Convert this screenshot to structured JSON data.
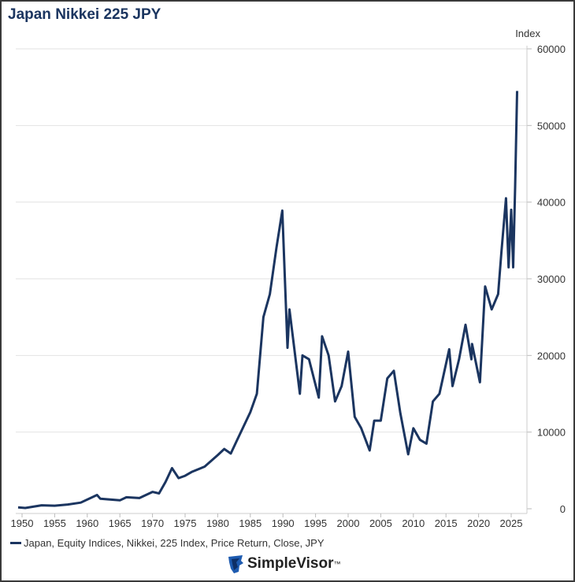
{
  "chart_data": {
    "type": "line",
    "title": "Japan Nikkei 225 JPY",
    "ylabel": "Index",
    "ylim": [
      0,
      60000
    ],
    "yticks": [
      0,
      10000,
      20000,
      30000,
      40000,
      50000,
      60000
    ],
    "xticks": [
      1950,
      1955,
      1960,
      1965,
      1970,
      1975,
      1980,
      1985,
      1990,
      1995,
      2000,
      2005,
      2010,
      2015,
      2020,
      2025
    ],
    "grid": true,
    "legend_placement": "bottom-left",
    "color": "#1b3560",
    "series": [
      {
        "name": "Japan, Equity Indices, Nikkei, 225 Index, Price Return, Close, JPY",
        "x": [
          1949.4,
          1950.5,
          1953,
          1955,
          1957,
          1959,
          1961.5,
          1962,
          1965,
          1966,
          1968,
          1970,
          1971,
          1972,
          1973,
          1974,
          1975,
          1976,
          1978,
          1980,
          1981,
          1982,
          1983,
          1984,
          1985,
          1986,
          1987,
          1988,
          1989,
          1989.9,
          1990.7,
          1991,
          1992.6,
          1993,
          1994,
          1995.5,
          1996,
          1997,
          1998,
          1999,
          2000,
          2001,
          2002,
          2003.3,
          2004,
          2005,
          2006,
          2007,
          2008,
          2009.2,
          2010,
          2011,
          2012,
          2013,
          2014,
          2015.5,
          2016,
          2017,
          2018,
          2018.9,
          2019,
          2020.2,
          2021,
          2022,
          2023,
          2023.5,
          2024.2,
          2024.6,
          2025,
          2025.3,
          2025.6,
          2025.8,
          2025.9
        ],
        "y": [
          176,
          100,
          450,
          400,
          550,
          800,
          1800,
          1300,
          1100,
          1500,
          1400,
          2200,
          2000,
          3500,
          5300,
          4000,
          4300,
          4800,
          5500,
          7000,
          7800,
          7200,
          9000,
          10800,
          12600,
          15000,
          25000,
          28000,
          34000,
          38900,
          21000,
          26000,
          15000,
          20000,
          19500,
          14500,
          22500,
          20000,
          14000,
          16000,
          20500,
          12000,
          10500,
          7600,
          11500,
          11500,
          17000,
          18000,
          12500,
          7100,
          10500,
          9000,
          8500,
          14000,
          15000,
          20800,
          16000,
          19500,
          24000,
          19500,
          21500,
          16500,
          29000,
          26000,
          28000,
          33500,
          40500,
          31500,
          39000,
          31500,
          42000,
          50000,
          54500
        ]
      }
    ]
  },
  "brand": {
    "name": "SimpleVisor",
    "tm": "™"
  }
}
